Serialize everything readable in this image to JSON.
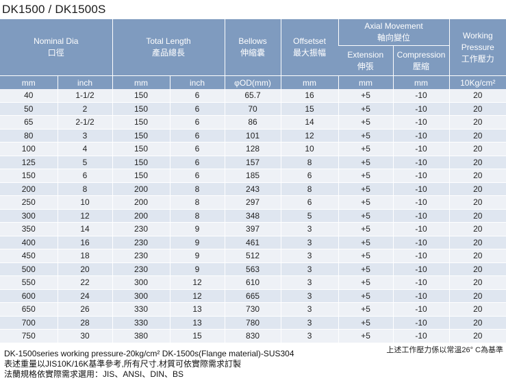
{
  "title": "DK1500 / DK1500S",
  "headers": {
    "nominal_dia_en": "Nominal Dia",
    "nominal_dia_zh": "口徑",
    "total_length_en": "Total Length",
    "total_length_zh": "產品總長",
    "bellows_en": "Bellows",
    "bellows_zh": "伸縮囊",
    "offset_en": "Offsetset",
    "offset_zh": "最大振幅",
    "axial_en": "Axial Movement",
    "axial_zh": "軸向變位",
    "extension_en": "Extension",
    "extension_zh": "伸張",
    "compression_en": "Compression",
    "compression_zh": "壓縮",
    "pressure_en1": "Working",
    "pressure_en2": "Pressure",
    "pressure_zh": "工作壓力"
  },
  "units": [
    "mm",
    "inch",
    "mm",
    "inch",
    "φOD(mm)",
    "mm",
    "mm",
    "mm",
    "10Kg/cm²"
  ],
  "rows": [
    [
      "40",
      "1-1/2",
      "150",
      "6",
      "65.7",
      "16",
      "+5",
      "-10",
      "20"
    ],
    [
      "50",
      "2",
      "150",
      "6",
      "70",
      "15",
      "+5",
      "-10",
      "20"
    ],
    [
      "65",
      "2-1/2",
      "150",
      "6",
      "86",
      "14",
      "+5",
      "-10",
      "20"
    ],
    [
      "80",
      "3",
      "150",
      "6",
      "101",
      "12",
      "+5",
      "-10",
      "20"
    ],
    [
      "100",
      "4",
      "150",
      "6",
      "128",
      "10",
      "+5",
      "-10",
      "20"
    ],
    [
      "125",
      "5",
      "150",
      "6",
      "157",
      "8",
      "+5",
      "-10",
      "20"
    ],
    [
      "150",
      "6",
      "150",
      "6",
      "185",
      "6",
      "+5",
      "-10",
      "20"
    ],
    [
      "200",
      "8",
      "200",
      "8",
      "243",
      "8",
      "+5",
      "-10",
      "20"
    ],
    [
      "250",
      "10",
      "200",
      "8",
      "297",
      "6",
      "+5",
      "-10",
      "20"
    ],
    [
      "300",
      "12",
      "200",
      "8",
      "348",
      "5",
      "+5",
      "-10",
      "20"
    ],
    [
      "350",
      "14",
      "230",
      "9",
      "397",
      "3",
      "+5",
      "-10",
      "20"
    ],
    [
      "400",
      "16",
      "230",
      "9",
      "461",
      "3",
      "+5",
      "-10",
      "20"
    ],
    [
      "450",
      "18",
      "230",
      "9",
      "512",
      "3",
      "+5",
      "-10",
      "20"
    ],
    [
      "500",
      "20",
      "230",
      "9",
      "563",
      "3",
      "+5",
      "-10",
      "20"
    ],
    [
      "550",
      "22",
      "300",
      "12",
      "610",
      "3",
      "+5",
      "-10",
      "20"
    ],
    [
      "600",
      "24",
      "300",
      "12",
      "665",
      "3",
      "+5",
      "-10",
      "20"
    ],
    [
      "650",
      "26",
      "330",
      "13",
      "730",
      "3",
      "+5",
      "-10",
      "20"
    ],
    [
      "700",
      "28",
      "330",
      "13",
      "780",
      "3",
      "+5",
      "-10",
      "20"
    ],
    [
      "750",
      "30",
      "380",
      "15",
      "830",
      "3",
      "+5",
      "-10",
      "20"
    ]
  ],
  "note_right": "上述工作壓力係以常溫26° C為基準",
  "notes": [
    "DK-1500series working pressure-20kg/cm² DK-1500s(Flange material)-SUS304",
    "表述重量以JIS10K/16K基準參考,所有尺寸.材質可依實際需求訂製",
    "法蘭規格依實際需求選用：JIS、ANSI、DIN、BS"
  ]
}
